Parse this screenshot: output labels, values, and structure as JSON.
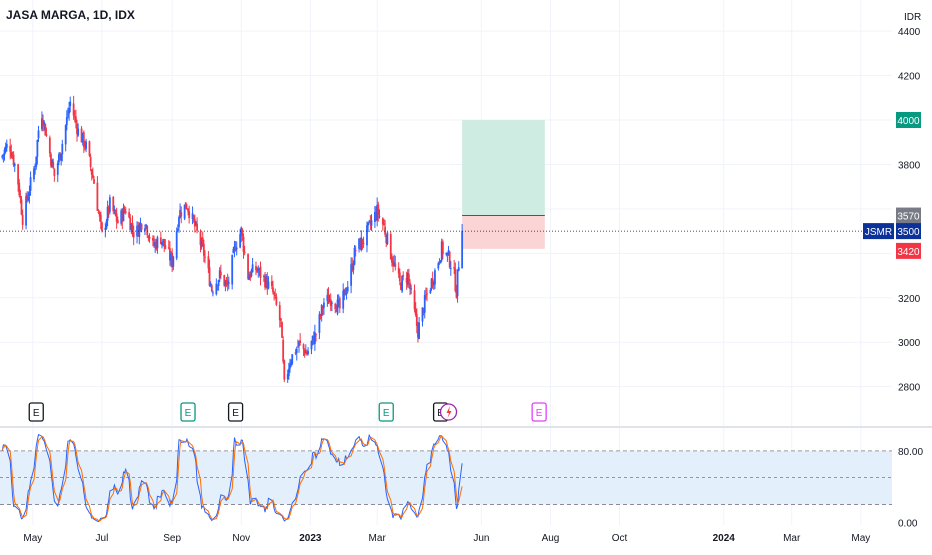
{
  "chart_data": [
    {
      "type": "candlestick",
      "title": "JASA MARGA, 1D, IDX",
      "currency": "IDR",
      "y_ticks": [
        2800,
        3000,
        3200,
        3400,
        3600,
        3800,
        4000,
        4200,
        4400
      ],
      "y_tick_labels": [
        "2800",
        "3000",
        "3200",
        "",
        "",
        "3800",
        "",
        "4200",
        "4400"
      ],
      "ylim": [
        2740,
        4450
      ],
      "x_tick_labels": [
        "May",
        "Jul",
        "Sep",
        "Nov",
        "2023",
        "Mar",
        "Jun",
        "Aug",
        "Oct",
        "2024",
        "Mar",
        "May"
      ],
      "x_tick_dates": [
        "2022-05-01",
        "2022-07-01",
        "2022-09-01",
        "2022-11-01",
        "2023-01-01",
        "2023-03-01",
        "2023-06-01",
        "2023-08-01",
        "2023-10-01",
        "2024-01-01",
        "2024-03-01",
        "2024-05-01"
      ],
      "date_range": [
        "2022-04-02",
        "2024-05-25"
      ],
      "last_date": "2023-05-15",
      "last_price": 3500,
      "symbol": "JSMR",
      "close_path": [
        [
          "2022-04-03",
          3830
        ],
        [
          "2022-04-10",
          3900
        ],
        [
          "2022-04-17",
          3760
        ],
        [
          "2022-04-22",
          3560
        ],
        [
          "2022-05-03",
          3800
        ],
        [
          "2022-05-08",
          4060
        ],
        [
          "2022-05-14",
          3900
        ],
        [
          "2022-05-20",
          3750
        ],
        [
          "2022-05-26",
          3870
        ],
        [
          "2022-06-03",
          4080
        ],
        [
          "2022-06-10",
          3950
        ],
        [
          "2022-06-17",
          3880
        ],
        [
          "2022-06-24",
          3720
        ],
        [
          "2022-07-01",
          3480
        ],
        [
          "2022-07-08",
          3620
        ],
        [
          "2022-07-15",
          3540
        ],
        [
          "2022-07-22",
          3600
        ],
        [
          "2022-07-30",
          3480
        ],
        [
          "2022-08-07",
          3560
        ],
        [
          "2022-08-15",
          3430
        ],
        [
          "2022-08-22",
          3470
        ],
        [
          "2022-09-01",
          3360
        ],
        [
          "2022-09-07",
          3580
        ],
        [
          "2022-09-14",
          3620
        ],
        [
          "2022-09-21",
          3520
        ],
        [
          "2022-09-29",
          3400
        ],
        [
          "2022-10-06",
          3240
        ],
        [
          "2022-10-13",
          3300
        ],
        [
          "2022-10-20",
          3250
        ],
        [
          "2022-10-27",
          3440
        ],
        [
          "2022-11-01",
          3500
        ],
        [
          "2022-11-07",
          3300
        ],
        [
          "2022-11-14",
          3330
        ],
        [
          "2022-11-22",
          3280
        ],
        [
          "2022-11-29",
          3220
        ],
        [
          "2022-12-06",
          3080
        ],
        [
          "2022-12-09",
          2800
        ],
        [
          "2022-12-14",
          2920
        ],
        [
          "2022-12-22",
          2990
        ],
        [
          "2022-12-29",
          2950
        ],
        [
          "2023-01-06",
          3040
        ],
        [
          "2023-01-13",
          3180
        ],
        [
          "2023-01-20",
          3200
        ],
        [
          "2023-01-27",
          3150
        ],
        [
          "2023-02-03",
          3260
        ],
        [
          "2023-02-10",
          3420
        ],
        [
          "2023-02-17",
          3460
        ],
        [
          "2023-02-24",
          3540
        ],
        [
          "2023-03-01",
          3590
        ],
        [
          "2023-03-07",
          3520
        ],
        [
          "2023-03-14",
          3380
        ],
        [
          "2023-03-21",
          3260
        ],
        [
          "2023-03-28",
          3300
        ],
        [
          "2023-04-01",
          3180
        ],
        [
          "2023-04-06",
          3050
        ],
        [
          "2023-04-13",
          3200
        ],
        [
          "2023-04-20",
          3300
        ],
        [
          "2023-04-27",
          3420
        ],
        [
          "2023-05-03",
          3380
        ],
        [
          "2023-05-07",
          3330
        ],
        [
          "2023-05-10",
          3230
        ],
        [
          "2023-05-12",
          3360
        ],
        [
          "2023-05-14",
          3340
        ],
        [
          "2023-05-15",
          3500
        ]
      ],
      "position": {
        "start_date": "2023-05-15",
        "end_date": "2023-07-27",
        "entry": 3570,
        "target": 4000,
        "stop": 3420,
        "target_label": "4000",
        "entry_label": "3570",
        "stop_label": "3420",
        "last_label": "3500"
      },
      "events": [
        {
          "date": "2022-05-04",
          "label": "E",
          "kind": "earnings-past"
        },
        {
          "date": "2022-09-15",
          "label": "E",
          "kind": "earnings-positive"
        },
        {
          "date": "2022-10-27",
          "label": "E",
          "kind": "earnings-past"
        },
        {
          "date": "2023-03-09",
          "label": "E",
          "kind": "earnings-positive"
        },
        {
          "date": "2023-04-26",
          "label": "E",
          "kind": "earnings-past"
        },
        {
          "date": "2023-05-03",
          "label": "",
          "kind": "split-lightning"
        },
        {
          "date": "2023-07-22",
          "label": "E",
          "kind": "earnings-upcoming"
        }
      ]
    },
    {
      "type": "line",
      "indicator": "stochastic",
      "y_ticks": [
        0,
        80
      ],
      "y_tick_labels": [
        "0.00",
        "80.00"
      ],
      "levels": [
        20,
        50,
        80
      ],
      "ylim": [
        -3,
        100
      ],
      "series": [
        {
          "color": "#2962ff"
        },
        {
          "color": "#ff6d00"
        }
      ]
    }
  ],
  "colors": {
    "up": "#2962ff",
    "down": "#f23645",
    "target_fill": "#cfece3",
    "stop_fill": "#fbd5d6",
    "target_badge": "#089981",
    "entry_badge": "#787b86",
    "stop_badge": "#f23645",
    "symbol_badge": "#2962ff",
    "grid": "#f0f3fa",
    "axis_text": "#131722"
  }
}
